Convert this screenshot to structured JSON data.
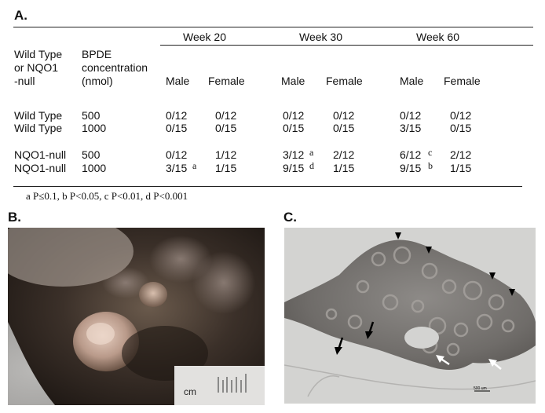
{
  "panel_a": {
    "label": "A.",
    "week_headers": [
      "Week 20",
      "Week 30",
      "Week 60"
    ],
    "col_group": "Wild Type\nor NQO1\n-null",
    "col_conc": "BPDE\nconcentration\n(nmol)",
    "sex_headers": [
      "Male",
      "Female",
      "Male",
      "Female",
      "Male",
      "Female"
    ],
    "rows": [
      {
        "group": "Wild Type",
        "conc": "500",
        "cells": [
          {
            "v": "0/12",
            "s": ""
          },
          {
            "v": "0/12",
            "s": ""
          },
          {
            "v": "0/12",
            "s": ""
          },
          {
            "v": "0/12",
            "s": ""
          },
          {
            "v": "0/12",
            "s": ""
          },
          {
            "v": "0/12",
            "s": ""
          }
        ]
      },
      {
        "group": "Wild Type",
        "conc": "1000",
        "cells": [
          {
            "v": "0/15",
            "s": ""
          },
          {
            "v": "0/15",
            "s": ""
          },
          {
            "v": "0/15",
            "s": ""
          },
          {
            "v": "0/15",
            "s": ""
          },
          {
            "v": "3/15",
            "s": ""
          },
          {
            "v": "0/15",
            "s": ""
          }
        ]
      },
      {
        "group": "NQO1-null",
        "conc": "500",
        "cells": [
          {
            "v": "0/12",
            "s": ""
          },
          {
            "v": "1/12",
            "s": ""
          },
          {
            "v": "3/12",
            "s": "a"
          },
          {
            "v": "2/12",
            "s": ""
          },
          {
            "v": "6/12",
            "s": "c"
          },
          {
            "v": "2/12",
            "s": ""
          }
        ]
      },
      {
        "group": "NQO1-null",
        "conc": "1000",
        "cells": [
          {
            "v": "3/15",
            "s": "a"
          },
          {
            "v": "1/15",
            "s": ""
          },
          {
            "v": "9/15",
            "s": "d"
          },
          {
            "v": "1/15",
            "s": ""
          },
          {
            "v": "9/15",
            "s": "b"
          },
          {
            "v": "1/15",
            "s": ""
          }
        ]
      }
    ],
    "footnote": "a P≤0.1,  b P<0.05,  c P<0.01,  d P<0.001"
  },
  "panel_b": {
    "label": "B.",
    "ruler_text": "cm"
  },
  "panel_c": {
    "label": "C.",
    "scale_bar_text": "500 um"
  }
}
